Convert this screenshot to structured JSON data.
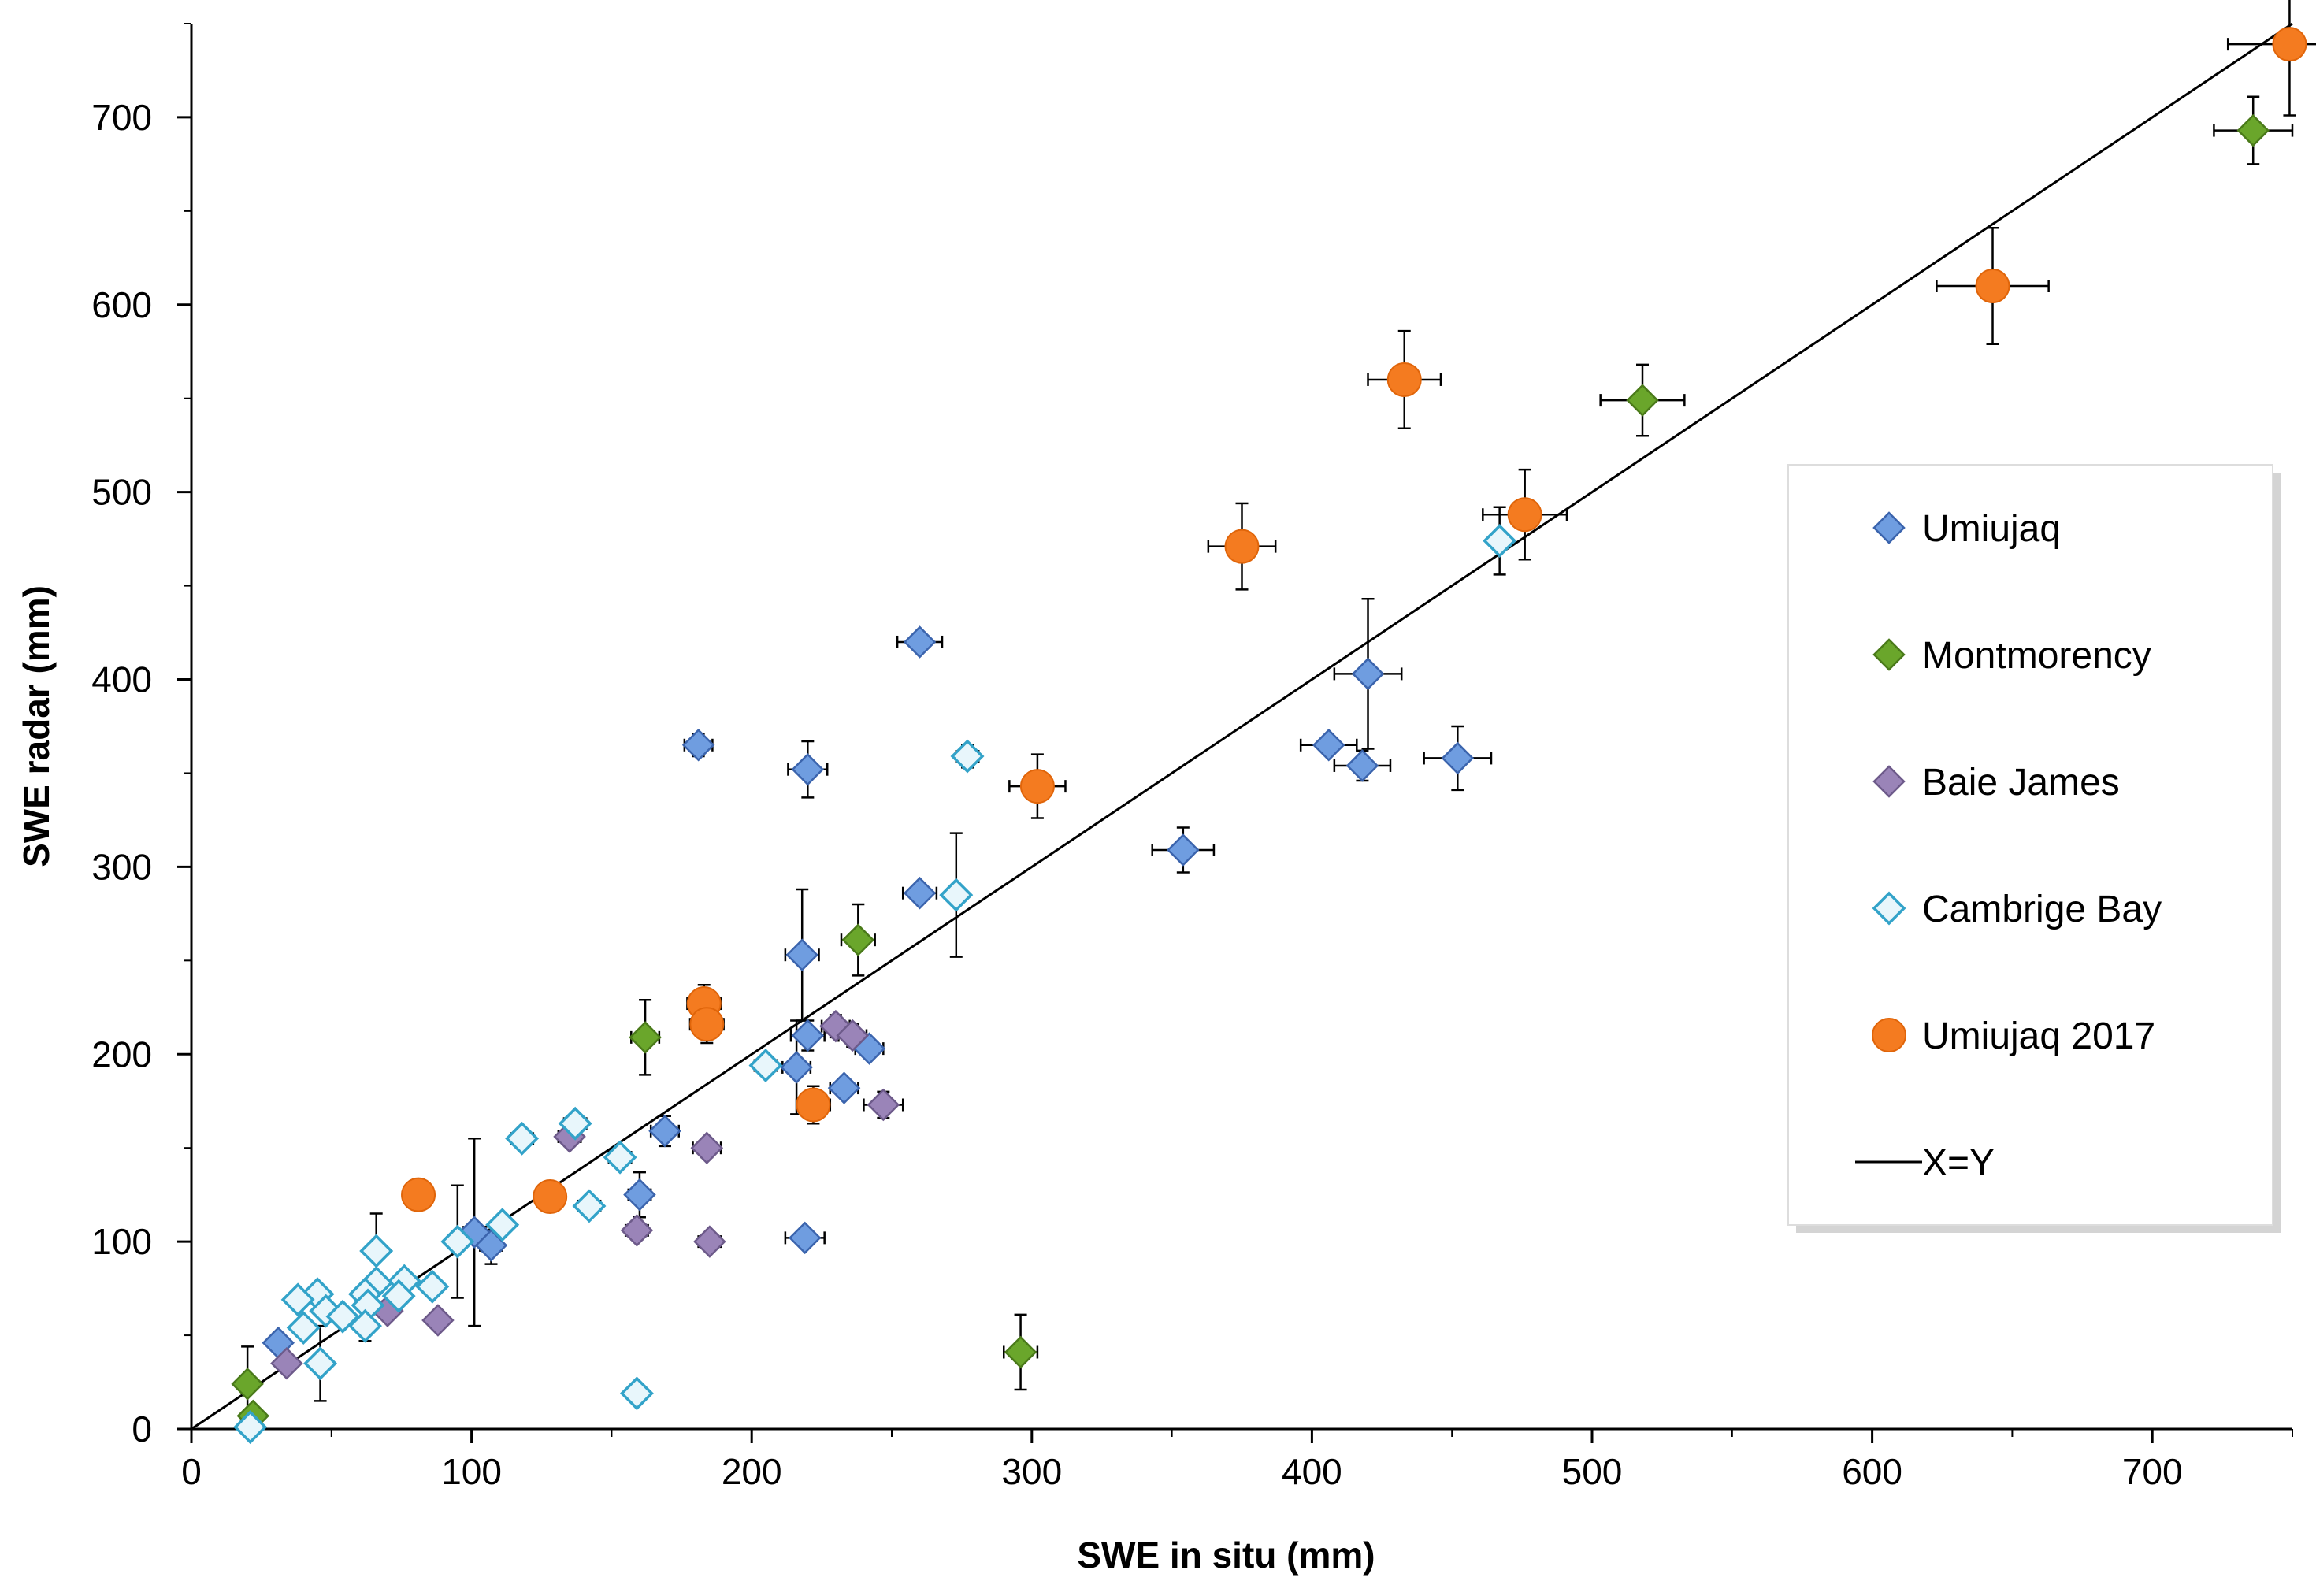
{
  "chart_data": {
    "type": "scatter",
    "title": "",
    "xlabel": "SWE in situ (mm)",
    "ylabel": "SWE radar (mm)",
    "xlim": [
      0,
      750
    ],
    "ylim": [
      0,
      750
    ],
    "xticks": [
      0,
      100,
      200,
      300,
      400,
      500,
      600,
      700
    ],
    "yticks": [
      0,
      100,
      200,
      300,
      400,
      500,
      600,
      700
    ],
    "grid": false,
    "legend_position": "right",
    "series": [
      {
        "name": "Umiujaq",
        "marker": "diamond",
        "color": "#6f9de0",
        "edge": "#3b64ad",
        "points": [
          {
            "x": 260,
            "y": 420,
            "xerr": 8,
            "yerr": 0
          },
          {
            "x": 181,
            "y": 365,
            "xerr": 5,
            "yerr": 6
          },
          {
            "x": 220,
            "y": 352,
            "xerr": 7,
            "yerr": 15
          },
          {
            "x": 420,
            "y": 403,
            "xerr": 12,
            "yerr": 40
          },
          {
            "x": 406,
            "y": 365,
            "xerr": 10,
            "yerr": 0
          },
          {
            "x": 418,
            "y": 354,
            "xerr": 10,
            "yerr": 8
          },
          {
            "x": 452,
            "y": 358,
            "xerr": 12,
            "yerr": 17
          },
          {
            "x": 354,
            "y": 309,
            "xerr": 11,
            "yerr": 12
          },
          {
            "x": 260,
            "y": 286,
            "xerr": 6,
            "yerr": 0
          },
          {
            "x": 218,
            "y": 253,
            "xerr": 6,
            "yerr": 35
          },
          {
            "x": 220,
            "y": 210,
            "xerr": 6,
            "yerr": 8
          },
          {
            "x": 216,
            "y": 193,
            "xerr": 5,
            "yerr": 25
          },
          {
            "x": 233,
            "y": 182,
            "xerr": 5,
            "yerr": 0
          },
          {
            "x": 242,
            "y": 203,
            "xerr": 5,
            "yerr": 4
          },
          {
            "x": 169,
            "y": 159,
            "xerr": 5,
            "yerr": 8
          },
          {
            "x": 160,
            "y": 125,
            "xerr": 4,
            "yerr": 12
          },
          {
            "x": 219,
            "y": 102,
            "xerr": 7,
            "yerr": 0
          },
          {
            "x": 101,
            "y": 105,
            "xerr": 4,
            "yerr": 50
          },
          {
            "x": 107,
            "y": 98,
            "xerr": 4,
            "yerr": 10
          },
          {
            "x": 31,
            "y": 46,
            "xerr": 3,
            "yerr": 5
          }
        ]
      },
      {
        "name": "Montmorency",
        "marker": "diamond",
        "color": "#6aa62b",
        "edge": "#4a7a1a",
        "points": [
          {
            "x": 736,
            "y": 693,
            "xerr": 14,
            "yerr": 18
          },
          {
            "x": 518,
            "y": 549,
            "xerr": 15,
            "yerr": 19
          },
          {
            "x": 238,
            "y": 261,
            "xerr": 6,
            "yerr": 19
          },
          {
            "x": 162,
            "y": 209,
            "xerr": 5,
            "yerr": 20
          },
          {
            "x": 296,
            "y": 41,
            "xerr": 6,
            "yerr": 20
          },
          {
            "x": 20,
            "y": 24,
            "xerr": 2,
            "yerr": 20
          },
          {
            "x": 22,
            "y": 7,
            "xerr": 2,
            "yerr": 3
          }
        ]
      },
      {
        "name": "Baie James",
        "marker": "diamond",
        "color": "#9a84b8",
        "edge": "#6d5a8a",
        "points": [
          {
            "x": 230,
            "y": 215,
            "xerr": 5,
            "yerr": 6
          },
          {
            "x": 236,
            "y": 210,
            "xerr": 5,
            "yerr": 6
          },
          {
            "x": 247,
            "y": 173,
            "xerr": 7,
            "yerr": 7
          },
          {
            "x": 184,
            "y": 150,
            "xerr": 5,
            "yerr": 5
          },
          {
            "x": 135,
            "y": 156,
            "xerr": 4,
            "yerr": 5
          },
          {
            "x": 159,
            "y": 106,
            "xerr": 4,
            "yerr": 5
          },
          {
            "x": 185,
            "y": 100,
            "xerr": 4,
            "yerr": 0
          },
          {
            "x": 88,
            "y": 58,
            "xerr": 3,
            "yerr": 0
          },
          {
            "x": 70,
            "y": 63,
            "xerr": 3,
            "yerr": 0
          },
          {
            "x": 34,
            "y": 35,
            "xerr": 2,
            "yerr": 0
          }
        ]
      },
      {
        "name": "Cambrige Bay",
        "marker": "diamond-open",
        "color": "#e8f6fb",
        "edge": "#33a3c9",
        "points": [
          {
            "x": 467,
            "y": 474,
            "xerr": 0,
            "yerr": 18
          },
          {
            "x": 277,
            "y": 359,
            "xerr": 4,
            "yerr": 6
          },
          {
            "x": 273,
            "y": 285,
            "xerr": 0,
            "yerr": 33
          },
          {
            "x": 205,
            "y": 194,
            "xerr": 4,
            "yerr": 0
          },
          {
            "x": 137,
            "y": 163,
            "xerr": 4,
            "yerr": 0
          },
          {
            "x": 118,
            "y": 155,
            "xerr": 4,
            "yerr": 5
          },
          {
            "x": 153,
            "y": 145,
            "xerr": 4,
            "yerr": 0
          },
          {
            "x": 142,
            "y": 119,
            "xerr": 4,
            "yerr": 5
          },
          {
            "x": 111,
            "y": 109,
            "xerr": 3,
            "yerr": 0
          },
          {
            "x": 95,
            "y": 100,
            "xerr": 3,
            "yerr": 30
          },
          {
            "x": 66,
            "y": 95,
            "xerr": 0,
            "yerr": 20
          },
          {
            "x": 86,
            "y": 76,
            "xerr": 3,
            "yerr": 0
          },
          {
            "x": 76,
            "y": 79,
            "xerr": 3,
            "yerr": 0
          },
          {
            "x": 66,
            "y": 78,
            "xerr": 3,
            "yerr": 0
          },
          {
            "x": 74,
            "y": 71,
            "xerr": 3,
            "yerr": 0
          },
          {
            "x": 62,
            "y": 72,
            "xerr": 3,
            "yerr": 0
          },
          {
            "x": 63,
            "y": 66,
            "xerr": 3,
            "yerr": 0
          },
          {
            "x": 45,
            "y": 72,
            "xerr": 2,
            "yerr": 0
          },
          {
            "x": 38,
            "y": 69,
            "xerr": 2,
            "yerr": 0
          },
          {
            "x": 48,
            "y": 63,
            "xerr": 2,
            "yerr": 0
          },
          {
            "x": 54,
            "y": 60,
            "xerr": 2,
            "yerr": 0
          },
          {
            "x": 40,
            "y": 54,
            "xerr": 2,
            "yerr": 0
          },
          {
            "x": 62,
            "y": 55,
            "xerr": 2,
            "yerr": 8
          },
          {
            "x": 46,
            "y": 35,
            "xerr": 0,
            "yerr": 20
          },
          {
            "x": 159,
            "y": 19,
            "xerr": 0,
            "yerr": 0
          },
          {
            "x": 21,
            "y": 1,
            "xerr": 0,
            "yerr": 0
          }
        ]
      },
      {
        "name": "Umiujaq 2017",
        "marker": "circle",
        "color": "#f47b20",
        "edge": "#e0650a",
        "points": [
          {
            "x": 749,
            "y": 739,
            "xerr": 22,
            "yerr": 38
          },
          {
            "x": 643,
            "y": 610,
            "xerr": 20,
            "yerr": 31
          },
          {
            "x": 433,
            "y": 560,
            "xerr": 13,
            "yerr": 26
          },
          {
            "x": 476,
            "y": 488,
            "xerr": 15,
            "yerr": 24
          },
          {
            "x": 375,
            "y": 471,
            "xerr": 12,
            "yerr": 23
          },
          {
            "x": 302,
            "y": 343,
            "xerr": 10,
            "yerr": 17
          },
          {
            "x": 183,
            "y": 227,
            "xerr": 6,
            "yerr": 10
          },
          {
            "x": 184,
            "y": 216,
            "xerr": 6,
            "yerr": 10
          },
          {
            "x": 222,
            "y": 173,
            "xerr": 6,
            "yerr": 10
          },
          {
            "x": 81,
            "y": 125,
            "xerr": 3,
            "yerr": 5
          },
          {
            "x": 128,
            "y": 124,
            "xerr": 4,
            "yerr": 5
          }
        ]
      }
    ],
    "reference_line": {
      "name": "X=Y",
      "color": "#000000",
      "from": [
        0,
        0
      ],
      "to": [
        750,
        750
      ]
    }
  }
}
